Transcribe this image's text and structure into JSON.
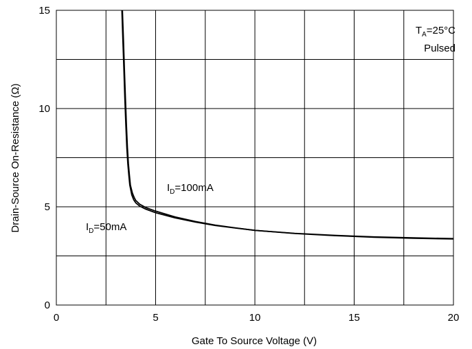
{
  "chart_data": {
    "type": "line",
    "title": "",
    "xlabel": "Gate To Source Voltage (V)",
    "ylabel": "Drain-Source On-Resistance (Ω)",
    "xlim": [
      0,
      20
    ],
    "ylim": [
      0,
      15
    ],
    "x_ticks": [
      0,
      5,
      10,
      15,
      20
    ],
    "y_ticks": [
      0,
      5,
      10,
      15
    ],
    "x_gridlines": [
      2.5,
      5,
      7.5,
      10,
      12.5,
      15,
      17.5
    ],
    "y_gridlines": [
      2.5,
      5,
      7.5,
      10,
      12.5
    ],
    "grid": true,
    "conditions": {
      "temp_main": "T",
      "temp_sub": "A",
      "temp_value": "=25°C",
      "mode": "Pulsed"
    },
    "series": [
      {
        "name": "I_D=50mA",
        "label_main": "I",
        "label_sub": "D",
        "label_value": "=50mA",
        "x": [
          3.3,
          3.35,
          3.4,
          3.45,
          3.5,
          3.55,
          3.6,
          3.65,
          3.7,
          3.8,
          3.9,
          4.0,
          4.2,
          4.5,
          5,
          6,
          7,
          8,
          9,
          10,
          12,
          14,
          16,
          18,
          20
        ],
        "y": [
          15,
          13.5,
          12,
          10.5,
          9.2,
          8.0,
          7.2,
          6.6,
          6.1,
          5.6,
          5.35,
          5.2,
          5.03,
          4.88,
          4.7,
          4.43,
          4.22,
          4.05,
          3.92,
          3.8,
          3.65,
          3.55,
          3.47,
          3.42,
          3.38
        ]
      },
      {
        "name": "I_D=100mA",
        "label_main": "I",
        "label_sub": "D",
        "label_value": "=100mA",
        "x": [
          3.33,
          3.38,
          3.43,
          3.48,
          3.53,
          3.58,
          3.63,
          3.68,
          3.73,
          3.83,
          3.93,
          4.0,
          4.2,
          4.5,
          5,
          6,
          7,
          8,
          9,
          10,
          12,
          14,
          16,
          18,
          20
        ],
        "y": [
          15,
          13.5,
          12,
          10.5,
          9.2,
          8.0,
          7.2,
          6.6,
          6.1,
          5.7,
          5.45,
          5.32,
          5.13,
          4.96,
          4.78,
          4.48,
          4.25,
          4.07,
          3.93,
          3.8,
          3.64,
          3.53,
          3.45,
          3.4,
          3.36
        ]
      }
    ]
  }
}
